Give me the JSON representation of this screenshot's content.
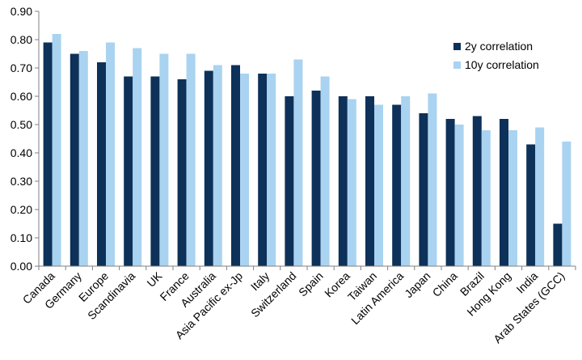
{
  "chart_data": {
    "type": "bar",
    "categories": [
      "Canada",
      "Germany",
      "Europe",
      "Scandinavia",
      "UK",
      "France",
      "Australia",
      "Asia Pacific ex-Jp",
      "Italy",
      "Switzerland",
      "Spain",
      "Korea",
      "Taiwan",
      "Latin America",
      "Japan",
      "China",
      "Brazil",
      "Hong Kong",
      "India",
      "Arab States (GCC)"
    ],
    "series": [
      {
        "name": "2y correlation",
        "color": "#0d3158",
        "values": [
          0.79,
          0.75,
          0.72,
          0.67,
          0.67,
          0.66,
          0.69,
          0.71,
          0.68,
          0.6,
          0.62,
          0.6,
          0.6,
          0.57,
          0.54,
          0.52,
          0.53,
          0.52,
          0.43,
          0.15
        ]
      },
      {
        "name": "10y correlation",
        "color": "#a9d3f0",
        "values": [
          0.82,
          0.76,
          0.79,
          0.77,
          0.75,
          0.75,
          0.71,
          0.68,
          0.68,
          0.73,
          0.67,
          0.59,
          0.57,
          0.6,
          0.61,
          0.5,
          0.48,
          0.48,
          0.49,
          0.44
        ]
      }
    ],
    "ylim": [
      0,
      0.9
    ],
    "yticks": [
      "0.00",
      "0.10",
      "0.20",
      "0.30",
      "0.40",
      "0.50",
      "0.60",
      "0.70",
      "0.80",
      "0.90"
    ],
    "grid": false,
    "legend_position": "top-right",
    "title": "",
    "xlabel": "",
    "ylabel": ""
  }
}
